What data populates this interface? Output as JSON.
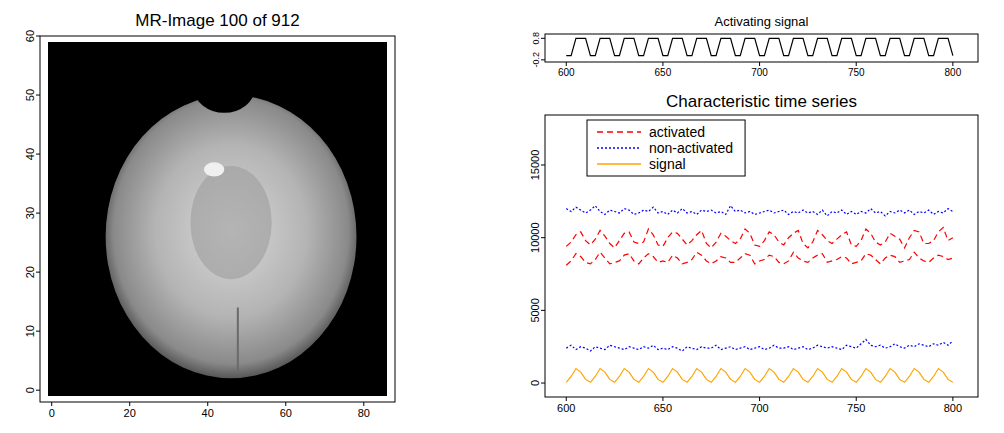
{
  "chart_data": [
    {
      "type": "image",
      "title": "MR-Image 100 of 912",
      "xlim": [
        -3,
        88
      ],
      "ylim": [
        -2,
        60
      ],
      "xticks": [
        0,
        20,
        40,
        60,
        80
      ],
      "yticks": [
        0,
        10,
        20,
        30,
        40,
        50,
        60
      ]
    },
    {
      "type": "line",
      "title": "Activating signal",
      "color": "#000000",
      "xlim": [
        589,
        813
      ],
      "ylim": [
        -0.3,
        1.0
      ],
      "xticks": [
        600,
        650,
        700,
        750,
        800
      ],
      "yticks": [
        -0.2,
        0.8
      ],
      "x": [
        600,
        602.5,
        605,
        607.5,
        610,
        612.5,
        615,
        617.5,
        620,
        622.5,
        625,
        627.5,
        630,
        632.5,
        635,
        637.5,
        640,
        642.5,
        645,
        647.5,
        650,
        652.5,
        655,
        657.5,
        660,
        662.5,
        665,
        667.5,
        670,
        672.5,
        675,
        677.5,
        680,
        682.5,
        685,
        687.5,
        690,
        692.5,
        695,
        697.5,
        700,
        702.5,
        705,
        707.5,
        710,
        712.5,
        715,
        717.5,
        720,
        722.5,
        725,
        727.5,
        730,
        732.5,
        735,
        737.5,
        740,
        742.5,
        745,
        747.5,
        750,
        752.5,
        755,
        757.5,
        760,
        762.5,
        765,
        767.5,
        770,
        772.5,
        775,
        777.5,
        780,
        782.5,
        785,
        787.5,
        790,
        792.5,
        795,
        797.5,
        800
      ],
      "values": [
        0,
        0,
        0.8,
        0.8,
        0.8,
        0,
        0,
        0.8,
        0.8,
        0.8,
        0,
        0,
        0.8,
        0.8,
        0.8,
        0,
        0,
        0.8,
        0.8,
        0.8,
        0,
        0,
        0.8,
        0.8,
        0.8,
        0,
        0,
        0.8,
        0.8,
        0.8,
        0,
        0,
        0.8,
        0.8,
        0.8,
        0,
        0,
        0.8,
        0.8,
        0.8,
        0,
        0,
        0.8,
        0.8,
        0.8,
        0,
        0,
        0.8,
        0.8,
        0.8,
        0,
        0,
        0.8,
        0.8,
        0.8,
        0,
        0,
        0.8,
        0.8,
        0.8,
        0,
        0,
        0.8,
        0.8,
        0.8,
        0,
        0,
        0.8,
        0.8,
        0.8,
        0,
        0,
        0.8,
        0.8,
        0.8,
        0,
        0,
        0.8,
        0.8,
        0.8,
        0
      ]
    },
    {
      "type": "line",
      "title": "Characteristic time series",
      "legend": "top-left",
      "xlim": [
        589,
        813
      ],
      "ylim": [
        -960,
        18440
      ],
      "xticks": [
        600,
        650,
        700,
        750,
        800
      ],
      "yticks": [
        0,
        5000,
        10000,
        15000
      ],
      "x": [
        600,
        602.5,
        605,
        607.5,
        610,
        612.5,
        615,
        617.5,
        620,
        622.5,
        625,
        627.5,
        630,
        632.5,
        635,
        637.5,
        640,
        642.5,
        645,
        647.5,
        650,
        652.5,
        655,
        657.5,
        660,
        662.5,
        665,
        667.5,
        670,
        672.5,
        675,
        677.5,
        680,
        682.5,
        685,
        687.5,
        690,
        692.5,
        695,
        697.5,
        700,
        702.5,
        705,
        707.5,
        710,
        712.5,
        715,
        717.5,
        720,
        722.5,
        725,
        727.5,
        730,
        732.5,
        735,
        737.5,
        740,
        742.5,
        745,
        747.5,
        750,
        752.5,
        755,
        757.5,
        760,
        762.5,
        765,
        767.5,
        770,
        772.5,
        775,
        777.5,
        780,
        782.5,
        785,
        787.5,
        790,
        792.5,
        795,
        797.5,
        800
      ],
      "series": [
        {
          "name": "activated",
          "color": "#ff0000",
          "line_style": "dashed",
          "values": [
            9400,
            9700,
            10200,
            10400,
            9800,
            9500,
            9900,
            10500,
            10100,
            9600,
            9300,
            9800,
            10300,
            10400,
            9700,
            9600,
            9700,
            10600,
            10200,
            9500,
            9400,
            10000,
            10400,
            10300,
            9900,
            9500,
            9800,
            10200,
            10500,
            9600,
            9300,
            9700,
            10300,
            10100,
            9800,
            9600,
            9900,
            10600,
            10300,
            9500,
            9400,
            9800,
            10400,
            10200,
            9700,
            9500,
            10000,
            10300,
            10500,
            9600,
            9300,
            9700,
            10500,
            10200,
            9800,
            9600,
            9900,
            10200,
            10400,
            9500,
            9400,
            9800,
            10600,
            10300,
            9700,
            9500,
            9700,
            10300,
            10100,
            9900,
            9300,
            10000,
            10500,
            10400,
            9600,
            9600,
            9800,
            10400,
            10700,
            9800,
            10000
          ]
        },
        {
          "name": "activated",
          "color": "#ff0000",
          "line_style": "dashed",
          "values": [
            8100,
            8400,
            8900,
            8700,
            8300,
            8200,
            8500,
            9000,
            8600,
            8200,
            8300,
            8400,
            8800,
            8900,
            8400,
            8200,
            8600,
            8900,
            8700,
            8300,
            8400,
            8300,
            8800,
            8600,
            8200,
            8300,
            8500,
            9000,
            8800,
            8400,
            8200,
            8400,
            8700,
            8600,
            8300,
            8300,
            8600,
            8900,
            8800,
            8200,
            8400,
            8500,
            8800,
            8700,
            8300,
            8200,
            8400,
            9000,
            8600,
            8400,
            8300,
            8600,
            8800,
            8900,
            8300,
            8400,
            8500,
            8700,
            8600,
            8200,
            8300,
            8400,
            8900,
            8800,
            8500,
            8200,
            8600,
            8800,
            8700,
            8300,
            8400,
            8500,
            9000,
            8600,
            8400,
            8300,
            8600,
            8800,
            8700,
            8500,
            8600
          ]
        },
        {
          "name": "non-activated",
          "color": "#0000ff",
          "line_style": "dotted",
          "values": [
            12000,
            11800,
            12100,
            11900,
            11700,
            11900,
            12200,
            11800,
            11600,
            11900,
            11800,
            11700,
            12000,
            11900,
            11600,
            11700,
            11900,
            11800,
            12100,
            11700,
            11800,
            11600,
            11900,
            11700,
            12000,
            11700,
            11800,
            11600,
            11900,
            11800,
            11900,
            11700,
            11800,
            11600,
            12200,
            11800,
            11900,
            11700,
            11800,
            11600,
            11700,
            11800,
            11900,
            11700,
            11800,
            11900,
            11600,
            11800,
            11700,
            11900,
            11700,
            11800,
            11600,
            11900,
            11500,
            11800,
            11700,
            11900,
            11600,
            11800,
            11600,
            11800,
            11700,
            12000,
            11700,
            11800,
            11500,
            11800,
            11700,
            11900,
            11700,
            11900,
            11600,
            11800,
            11700,
            11900,
            11600,
            11800,
            11700,
            12000,
            11800
          ]
        },
        {
          "name": "non-activated",
          "color": "#0000ff",
          "line_style": "dotted",
          "values": [
            2400,
            2600,
            2300,
            2500,
            2400,
            2200,
            2500,
            2400,
            2300,
            2600,
            2500,
            2400,
            2300,
            2500,
            2400,
            2300,
            2500,
            2400,
            2600,
            2300,
            2400,
            2300,
            2500,
            2400,
            2200,
            2500,
            2400,
            2300,
            2500,
            2400,
            2400,
            2600,
            2300,
            2400,
            2500,
            2300,
            2400,
            2500,
            2300,
            2400,
            2500,
            2300,
            2400,
            2600,
            2400,
            2400,
            2500,
            2300,
            2400,
            2500,
            2300,
            2400,
            2600,
            2500,
            2400,
            2500,
            2400,
            2300,
            2600,
            2500,
            2400,
            2700,
            3000,
            2600,
            2500,
            2600,
            2400,
            2500,
            2700,
            2500,
            2400,
            2600,
            2500,
            2700,
            2600,
            2500,
            2700,
            2600,
            2800,
            2600,
            2900
          ]
        },
        {
          "name": "signal",
          "color": "#ffa500",
          "line_style": "solid",
          "values": [
            50,
            450,
            1000,
            750,
            250,
            50,
            450,
            1000,
            750,
            250,
            50,
            450,
            1000,
            750,
            250,
            50,
            450,
            1000,
            750,
            250,
            50,
            450,
            1000,
            750,
            250,
            50,
            450,
            1000,
            750,
            250,
            50,
            450,
            1000,
            750,
            250,
            50,
            450,
            1000,
            750,
            250,
            50,
            450,
            1000,
            750,
            250,
            50,
            450,
            1000,
            750,
            250,
            50,
            450,
            1000,
            750,
            250,
            50,
            450,
            1000,
            750,
            250,
            50,
            450,
            1000,
            750,
            250,
            50,
            450,
            1000,
            750,
            250,
            50,
            450,
            1000,
            750,
            250,
            50,
            450,
            1000,
            750,
            250,
            50
          ]
        }
      ]
    }
  ]
}
